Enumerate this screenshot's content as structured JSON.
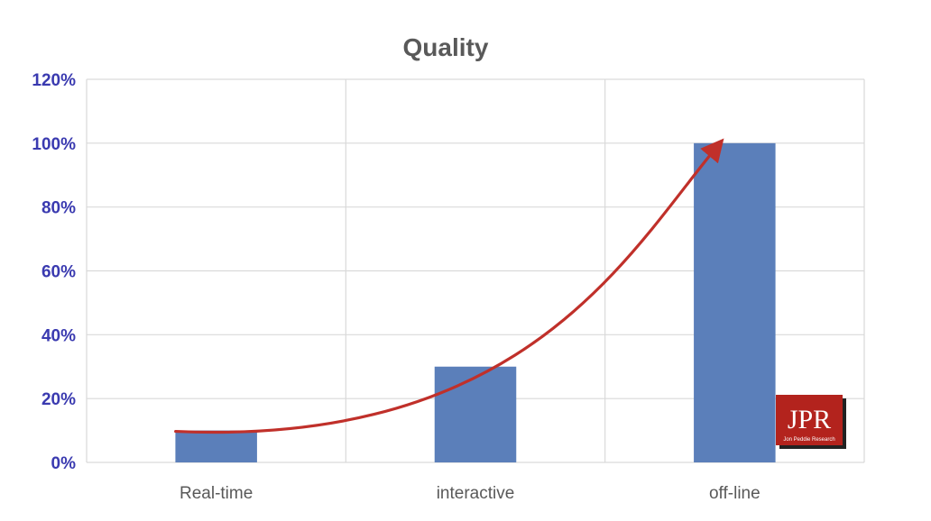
{
  "chart_data": {
    "type": "bar",
    "title": "Quality",
    "categories": [
      "Real-time",
      "interactive",
      "off-line"
    ],
    "values": [
      10,
      30,
      100
    ],
    "ylim": [
      0,
      120
    ],
    "yticks": [
      "0%",
      "20%",
      "40%",
      "60%",
      "80%",
      "100%",
      "120%"
    ],
    "ytick_values": [
      0,
      20,
      40,
      60,
      80,
      100,
      120
    ],
    "xlabel": "",
    "ylabel": "",
    "grid": true,
    "bar_color": "#5b7fba",
    "annotation": {
      "type": "curved-arrow",
      "from_category": "Real-time",
      "from_value": 10,
      "to_category": "off-line",
      "to_value": 100,
      "color": "#c0302a"
    }
  },
  "logo": {
    "text": "JPR",
    "subtext": "Jon Peddie Research",
    "background": "#b3231d"
  }
}
